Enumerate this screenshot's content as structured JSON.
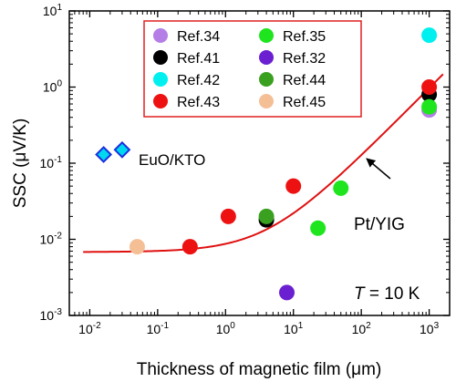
{
  "chart_data": {
    "type": "scatter",
    "xlabel": "Thickness of magnetic film (μm)",
    "ylabel": "SSC (μV/K)",
    "x_scale": "log",
    "y_scale": "log",
    "xlim": [
      0.005,
      2000
    ],
    "ylim": [
      0.001,
      10
    ],
    "x_ticks": [
      {
        "value": 0.01,
        "base": "10",
        "exp": "-2"
      },
      {
        "value": 0.1,
        "base": "10",
        "exp": "-1"
      },
      {
        "value": 1,
        "base": "10",
        "exp": "0"
      },
      {
        "value": 10,
        "base": "10",
        "exp": "1"
      },
      {
        "value": 100,
        "base": "10",
        "exp": "2"
      },
      {
        "value": 1000,
        "base": "10",
        "exp": "3"
      }
    ],
    "y_ticks": [
      {
        "value": 0.001,
        "base": "10",
        "exp": "-3"
      },
      {
        "value": 0.01,
        "base": "10",
        "exp": "-2"
      },
      {
        "value": 0.1,
        "base": "10",
        "exp": "-1"
      },
      {
        "value": 1,
        "base": "10",
        "exp": "0"
      },
      {
        "value": 10,
        "base": "10",
        "exp": "1"
      }
    ],
    "legend_position": "top-center",
    "series": [
      {
        "name": "Ref.34",
        "color": "#b57ee6",
        "points": [
          {
            "x": 1000,
            "y": 0.5
          }
        ]
      },
      {
        "name": "Ref.41",
        "color": "#000000",
        "points": [
          {
            "x": 4,
            "y": 0.018
          },
          {
            "x": 1000,
            "y": 0.8
          }
        ]
      },
      {
        "name": "Ref.42",
        "color": "#00f0f0",
        "points": [
          {
            "x": 1000,
            "y": 4.8
          }
        ]
      },
      {
        "name": "Ref.43",
        "color": "#ee1111",
        "points": [
          {
            "x": 0.3,
            "y": 0.008
          },
          {
            "x": 1.1,
            "y": 0.02
          },
          {
            "x": 10,
            "y": 0.05
          },
          {
            "x": 1000,
            "y": 1.0
          }
        ]
      },
      {
        "name": "Ref.45",
        "color": "#f5bf96",
        "points": [
          {
            "x": 0.05,
            "y": 0.008
          }
        ]
      },
      {
        "name": "Ref.35",
        "color": "#1fe51f",
        "points": [
          {
            "x": 23,
            "y": 0.014
          },
          {
            "x": 50,
            "y": 0.047
          },
          {
            "x": 1000,
            "y": 0.55
          }
        ]
      },
      {
        "name": "Ref.32",
        "color": "#6a1fd0",
        "points": [
          {
            "x": 8,
            "y": 0.002
          }
        ]
      },
      {
        "name": "Ref.44",
        "color": "#3aa01f",
        "points": [
          {
            "x": 4,
            "y": 0.02
          }
        ]
      }
    ],
    "legend_order": [
      "Ref.34",
      "Ref.35",
      "Ref.41",
      "Ref.32",
      "Ref.42",
      "Ref.44",
      "Ref.43",
      "Ref.45"
    ],
    "diamond_series": {
      "label": "EuO/KTO",
      "color": "#00d8f0",
      "edge_color": "#1a2ee0",
      "label_color": "#1a3ad0",
      "points": [
        {
          "x": 0.016,
          "y": 0.13
        },
        {
          "x": 0.03,
          "y": 0.15
        }
      ]
    },
    "fit_curve": {
      "color": "#e01010",
      "a": 0.0068,
      "b": 0.00192,
      "power": 0.9,
      "x_range": [
        0.008,
        1600
      ]
    },
    "annotation": {
      "text": "Pt/YIG",
      "arrow_target": {
        "x": 130,
        "y": 0.11
      }
    },
    "condition_label": {
      "symbol": "T",
      "text": " = 10 K"
    },
    "frame_color": "#000000",
    "legend_border_color": "#e02020"
  }
}
